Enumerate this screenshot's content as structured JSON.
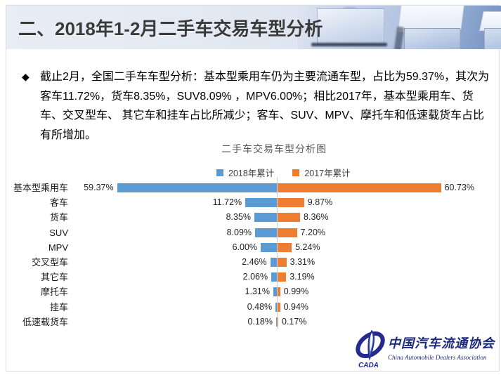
{
  "banner": {
    "title": "二、2018年1-2月二手车交易车型分析"
  },
  "intro": {
    "marker": "◆",
    "text": "截止2月，全国二手车车型分析：基本型乘用车仍为主要流通车型，占比为59.37%，其次为客车11.72%，货车8.35%，SUV8.09% ，MPV6.00%；相比2017年，基本型乘用车、货车、交叉型车、 其它车和挂车占比所减少；客车、SUV、MPV、摩托车和低速载货车占比有所增加。"
  },
  "chart_data": {
    "type": "bar",
    "variant": "diverging-horizontal",
    "title": "二手车交易车型分析图",
    "categories": [
      "基本型乘用车",
      "客车",
      "货车",
      "SUV",
      "MPV",
      "交叉型车",
      "其它车",
      "摩托车",
      "挂车",
      "低速载货车"
    ],
    "series": [
      {
        "name": "2018年累计",
        "color": "#5B9BD5",
        "side": "left",
        "values": [
          59.37,
          11.72,
          8.35,
          8.09,
          6.0,
          2.46,
          2.06,
          1.31,
          0.48,
          0.18
        ],
        "labels": [
          "59.37%",
          "11.72%",
          "8.35%",
          "8.09%",
          "6.00%",
          "2.46%",
          "2.06%",
          "1.31%",
          "0.48%",
          "0.18%"
        ]
      },
      {
        "name": "2017年累计",
        "color": "#ED7D31",
        "side": "right",
        "values": [
          60.73,
          9.87,
          8.36,
          7.2,
          5.24,
          3.31,
          3.19,
          0.99,
          0.94,
          0.17
        ],
        "labels": [
          "60.73%",
          "9.87%",
          "8.36%",
          "7.20%",
          "5.24%",
          "3.31%",
          "3.19%",
          "0.99%",
          "0.94%",
          "0.17%"
        ]
      }
    ],
    "value_unit": "%",
    "axis_max_per_side": 65,
    "legend_position": "top-center",
    "grid": false,
    "axis_line_color": "#c9ced5"
  },
  "logo": {
    "abbr": "CADA",
    "name_cn": "中国汽车流通协会",
    "name_en": "China Automobile Dealers Association"
  }
}
